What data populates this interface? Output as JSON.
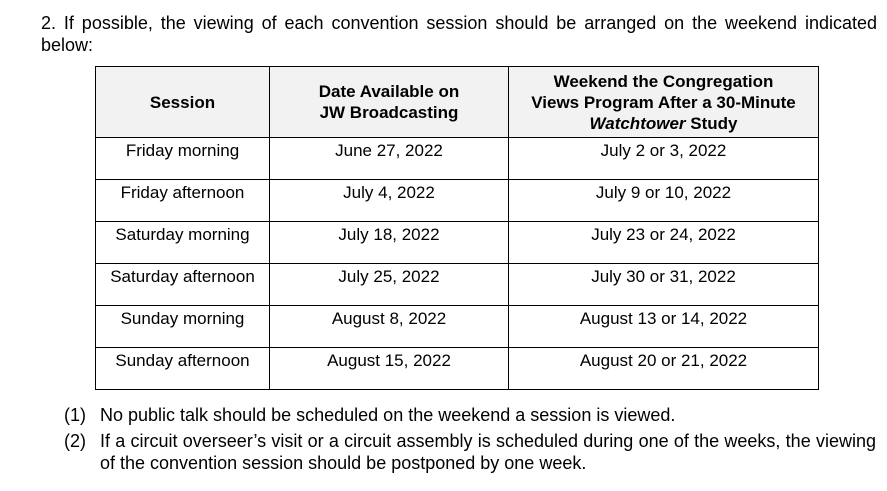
{
  "intro": "2. If possible, the viewing of each convention session should be arranged on the weekend indicated below:",
  "table": {
    "headers": {
      "session": "Session",
      "date_line1": "Date Available on",
      "date_line2": "JW Broadcasting",
      "weekend_line1": "Weekend the Congregation",
      "weekend_line2": "Views Program After a 30-Minute",
      "weekend_italic": "Watchtower",
      "weekend_tail": " Study"
    },
    "rows": [
      {
        "session": "Friday morning",
        "date": "June 27, 2022",
        "weekend": "July 2 or 3, 2022"
      },
      {
        "session": "Friday afternoon",
        "date": "July 4, 2022",
        "weekend": "July 9 or 10, 2022"
      },
      {
        "session": "Saturday morning",
        "date": "July 18, 2022",
        "weekend": "July 23 or 24, 2022"
      },
      {
        "session": "Saturday afternoon",
        "date": "July 25, 2022",
        "weekend": "July 30 or 31, 2022"
      },
      {
        "session": "Sunday morning",
        "date": "August 8, 2022",
        "weekend": "August 13 or 14, 2022"
      },
      {
        "session": "Sunday afternoon",
        "date": "August 15, 2022",
        "weekend": "August 20 or 21, 2022"
      }
    ]
  },
  "notes": [
    {
      "num": "(1)",
      "text": "No public talk should be scheduled on the weekend a session is viewed."
    },
    {
      "num": "(2)",
      "text": "If a circuit overseer’s visit or a circuit assembly is scheduled during one of the weeks, the viewing of the convention session should be postponed by one week."
    }
  ]
}
